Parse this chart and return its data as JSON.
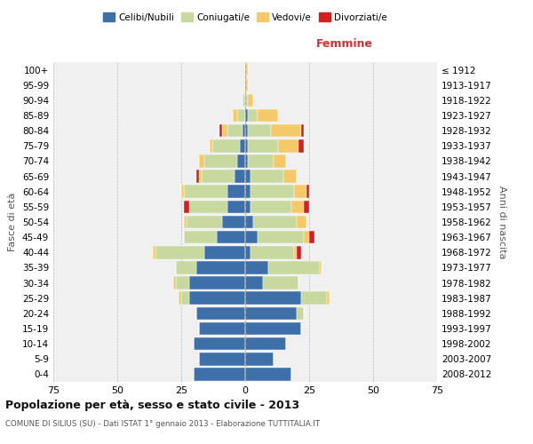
{
  "age_groups": [
    "0-4",
    "5-9",
    "10-14",
    "15-19",
    "20-24",
    "25-29",
    "30-34",
    "35-39",
    "40-44",
    "45-49",
    "50-54",
    "55-59",
    "60-64",
    "65-69",
    "70-74",
    "75-79",
    "80-84",
    "85-89",
    "90-94",
    "95-99",
    "100+"
  ],
  "birth_years": [
    "2008-2012",
    "2003-2007",
    "1998-2002",
    "1993-1997",
    "1988-1992",
    "1983-1987",
    "1978-1982",
    "1973-1977",
    "1968-1972",
    "1963-1967",
    "1958-1962",
    "1953-1957",
    "1948-1952",
    "1943-1947",
    "1938-1942",
    "1933-1937",
    "1928-1932",
    "1923-1927",
    "1918-1922",
    "1913-1917",
    "≤ 1912"
  ],
  "male_celibe": [
    20,
    18,
    20,
    18,
    19,
    22,
    22,
    19,
    16,
    11,
    9,
    7,
    7,
    4,
    3,
    2,
    1,
    0,
    0,
    0,
    0
  ],
  "male_coniugato": [
    0,
    0,
    0,
    0,
    0,
    3,
    5,
    8,
    19,
    13,
    14,
    15,
    17,
    13,
    13,
    11,
    6,
    3,
    1,
    0,
    0
  ],
  "male_vedovo": [
    0,
    0,
    0,
    0,
    0,
    1,
    1,
    0,
    1,
    0,
    1,
    0,
    1,
    1,
    2,
    1,
    2,
    2,
    0,
    0,
    0
  ],
  "male_divorziato": [
    0,
    0,
    0,
    0,
    0,
    0,
    0,
    0,
    0,
    0,
    0,
    2,
    0,
    1,
    0,
    0,
    1,
    0,
    0,
    0,
    0
  ],
  "female_celibe": [
    18,
    11,
    16,
    22,
    20,
    22,
    7,
    9,
    2,
    5,
    3,
    2,
    2,
    2,
    1,
    1,
    1,
    1,
    0,
    0,
    0
  ],
  "female_coniugato": [
    0,
    0,
    0,
    0,
    3,
    10,
    14,
    20,
    17,
    18,
    17,
    16,
    17,
    13,
    10,
    12,
    9,
    4,
    1,
    0,
    0
  ],
  "female_vedovo": [
    0,
    0,
    0,
    0,
    0,
    1,
    0,
    1,
    1,
    2,
    4,
    5,
    5,
    5,
    5,
    8,
    12,
    8,
    2,
    1,
    1
  ],
  "female_divorziata": [
    0,
    0,
    0,
    0,
    0,
    0,
    0,
    0,
    2,
    2,
    0,
    2,
    1,
    0,
    0,
    2,
    1,
    0,
    0,
    0,
    0
  ],
  "color_celibe": "#3d6fa8",
  "color_coniugato": "#c8d9a0",
  "color_vedovo": "#f5c96a",
  "color_divorziato": "#cc2222",
  "title_main": "Popolazione per età, sesso e stato civile - 2013",
  "title_sub": "COMUNE DI SILIUS (SU) - Dati ISTAT 1° gennaio 2013 - Elaborazione TUTTITALIA.IT",
  "xlabel_right": "Femmine",
  "ylabel_left": "Fasce di età",
  "ylabel_right": "Anni di nascita",
  "legend_labels": [
    "Celibi/Nubili",
    "Coniugati/e",
    "Vedovi/e",
    "Divorziati/e"
  ],
  "xmax": 75,
  "bg_color": "#ffffff",
  "grid_color": "#bbbbbb"
}
